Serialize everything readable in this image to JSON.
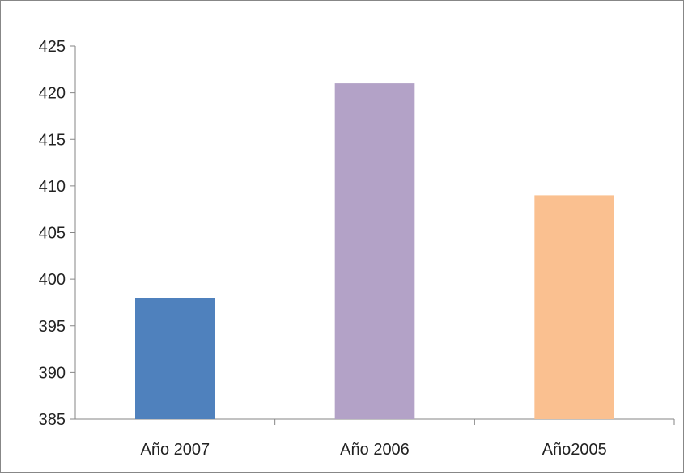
{
  "chart_data": {
    "type": "bar",
    "title": "",
    "xlabel": "",
    "ylabel": "",
    "categories": [
      "Año 2007",
      "Año 2006",
      "Año2005"
    ],
    "values": [
      398,
      421,
      409
    ],
    "colors": [
      "#4f81bd",
      "#b3a2c7",
      "#fac090"
    ],
    "ylim": [
      385,
      425
    ],
    "yticks": [
      385,
      390,
      395,
      400,
      405,
      410,
      415,
      420,
      425
    ],
    "ytick_labels": [
      "385",
      "390",
      "395",
      "400",
      "405",
      "410",
      "415",
      "420",
      "425"
    ],
    "grid": false,
    "legend": "none"
  }
}
